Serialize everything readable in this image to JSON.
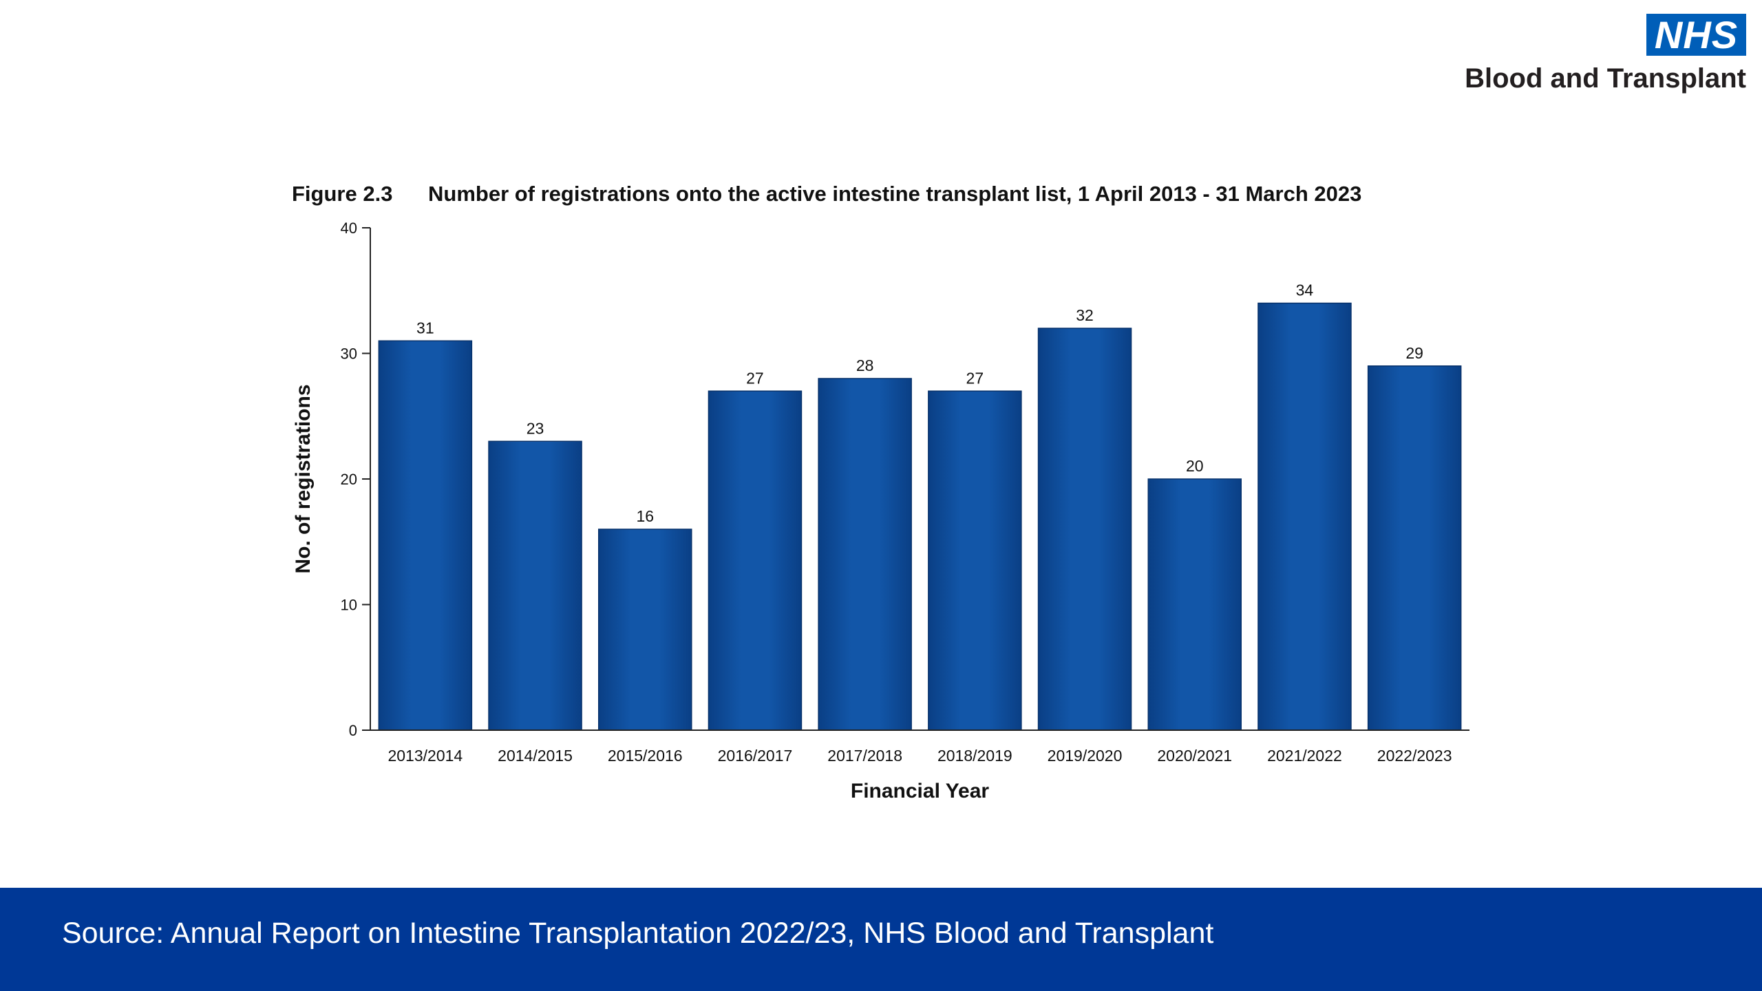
{
  "logo": {
    "mark": "NHS",
    "subtitle": "Blood and Transplant"
  },
  "title": {
    "figure_label": "Figure 2.3",
    "text": "Number of registrations onto the active intestine transplant list, 1 April 2013 - 31 March 2023"
  },
  "chart_data": {
    "type": "bar",
    "title": "Number of registrations onto the active intestine transplant list, 1 April 2013 - 31 March 2023",
    "xlabel": "Financial Year",
    "ylabel": "No. of registrations",
    "categories": [
      "2013/2014",
      "2014/2015",
      "2015/2016",
      "2016/2017",
      "2017/2018",
      "2018/2019",
      "2019/2020",
      "2020/2021",
      "2021/2022",
      "2022/2023"
    ],
    "values": [
      31,
      23,
      16,
      27,
      28,
      27,
      32,
      20,
      34,
      29
    ],
    "ylim": [
      0,
      40
    ],
    "yticks": [
      0,
      10,
      20,
      30,
      40
    ],
    "grid": false,
    "data_labels": true,
    "bar_color": "#0d4fa0"
  },
  "footer": {
    "source": "Source: Annual Report on Intestine Transplantation 2022/23, NHS Blood and Transplant",
    "background": "#003896"
  },
  "colors": {
    "nhs_blue": "#005eb8",
    "bar": "#0d4fa0",
    "footer": "#003896"
  }
}
